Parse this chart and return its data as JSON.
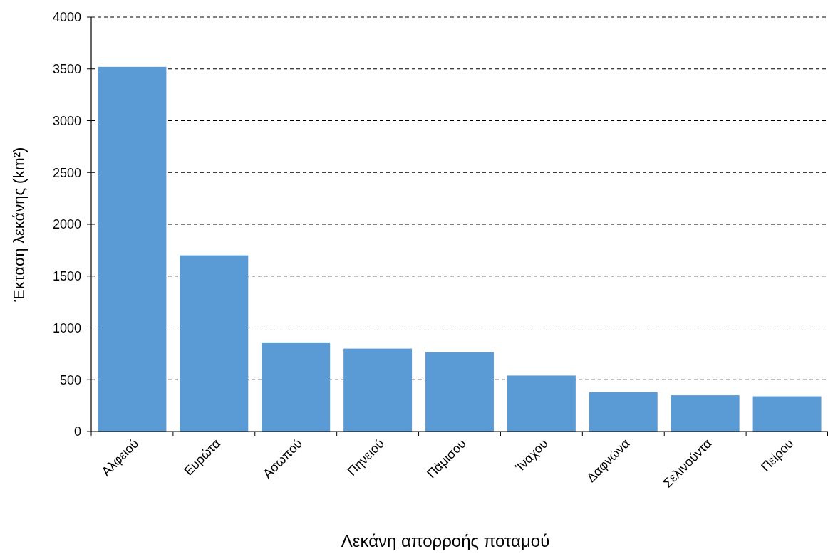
{
  "chart_data": {
    "type": "bar",
    "xlabel": "Λεκάνη απορροής ποταμού",
    "ylabel": "Έκταση λεκάνης (km²)",
    "categories": [
      "Αλφειού",
      "Ευρώτα",
      "Ασωπού",
      "Πηνειού",
      "Πάμισου",
      "Ίναχου",
      "Δαφνώνα",
      "Σελινούντα",
      "Πείρου"
    ],
    "values": [
      3520,
      1700,
      860,
      800,
      765,
      540,
      380,
      350,
      340
    ],
    "color": "#5b9bd5",
    "ylim": [
      0,
      4000
    ],
    "yticks": [
      0,
      500,
      1000,
      1500,
      2000,
      2500,
      3000,
      3500,
      4000
    ],
    "grid": "y"
  }
}
